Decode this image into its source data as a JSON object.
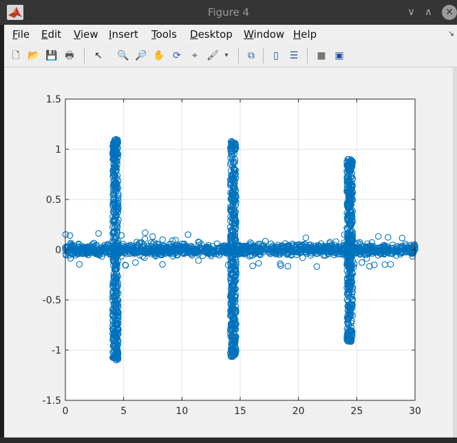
{
  "window": {
    "title": "Figure 4",
    "minimize_glyph": "∨",
    "maximize_glyph": "∧",
    "close_glyph": "✕"
  },
  "menu": {
    "items": [
      {
        "key": "F",
        "rest": "ile"
      },
      {
        "key": "E",
        "rest": "dit"
      },
      {
        "key": "V",
        "rest": "iew"
      },
      {
        "key": "I",
        "rest": "nsert"
      },
      {
        "key": "T",
        "rest": "ools"
      },
      {
        "key": "D",
        "rest": "esktop"
      },
      {
        "key": "W",
        "rest": "indow"
      },
      {
        "key": "H",
        "rest": "elp"
      }
    ]
  },
  "toolbar": {
    "tools": [
      {
        "name": "new-figure-icon",
        "glyph": "🗋"
      },
      {
        "name": "open-file-icon",
        "glyph": "📂"
      },
      {
        "name": "save-icon",
        "glyph": "💾"
      },
      {
        "name": "print-icon",
        "glyph": "🖶"
      },
      {
        "name": "pointer-icon",
        "glyph": "↖"
      },
      {
        "name": "zoom-in-icon",
        "glyph": "🔍"
      },
      {
        "name": "zoom-out-icon",
        "glyph": "🔎"
      },
      {
        "name": "pan-icon",
        "glyph": "✋"
      },
      {
        "name": "rotate-3d-icon",
        "glyph": "⟳"
      },
      {
        "name": "data-cursor-icon",
        "glyph": "⌖"
      },
      {
        "name": "brush-icon",
        "glyph": "🖌"
      },
      {
        "name": "brush-dropdown-icon",
        "glyph": "▾"
      },
      {
        "name": "link-plot-icon",
        "glyph": "⧉"
      },
      {
        "name": "colorbar-icon",
        "glyph": "▯"
      },
      {
        "name": "legend-icon",
        "glyph": "☰"
      },
      {
        "name": "hide-plot-tools-icon",
        "glyph": "■"
      },
      {
        "name": "show-plot-tools-icon",
        "glyph": "▣"
      }
    ]
  },
  "chart_data": {
    "type": "scatter",
    "title": "",
    "xlabel": "",
    "ylabel": "",
    "xlim": [
      0,
      30
    ],
    "ylim": [
      -1.5,
      1.5
    ],
    "xticks": [
      "0",
      "5",
      "10",
      "15",
      "20",
      "25",
      "30"
    ],
    "yticks": [
      "-1.5",
      "-1",
      "-0.5",
      "0",
      "0.5",
      "1",
      "1.5"
    ],
    "grid": true,
    "marker": "circle-open",
    "color": "#0072bd",
    "noise_band": {
      "x_range": [
        0,
        30
      ],
      "y_range": [
        -0.15,
        0.15
      ]
    },
    "bursts": [
      {
        "x_center": 4.3,
        "x_width": 0.5,
        "y_max": 1.1,
        "y_min": -1.1
      },
      {
        "x_center": 14.4,
        "x_width": 0.5,
        "y_max": 1.08,
        "y_min": -1.07
      },
      {
        "x_center": 24.4,
        "x_width": 0.5,
        "y_max": 0.9,
        "y_min": -0.92
      }
    ]
  }
}
